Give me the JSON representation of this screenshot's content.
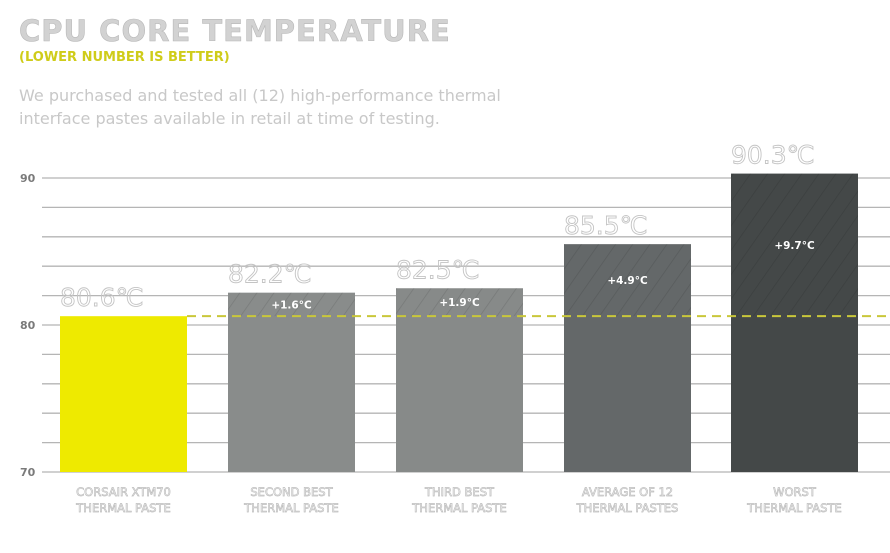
{
  "title": "CPU CORE TEMPERATURE",
  "subtitle": "(LOWER NUMBER IS BETTER)",
  "description": "We purchased and tested all (12) high-performance thermal interface pastes available in retail at time of testing.",
  "chart_data": {
    "type": "bar",
    "title": "CPU CORE TEMPERATURE",
    "categories": [
      "CORSAIR XTM70\nTHERMAL PASTE",
      "SECOND BEST\nTHERMAL PASTE",
      "THIRD BEST\nTHERMAL PASTE",
      "AVERAGE OF 12\nTHERMAL PASTES",
      "WORST\nTHERMAL PASTE"
    ],
    "values": [
      80.6,
      82.2,
      82.5,
      85.5,
      90.3
    ],
    "value_labels": [
      "80.6℃",
      "82.2℃",
      "82.5℃",
      "85.5℃",
      "90.3℃"
    ],
    "delta_labels": [
      "",
      "+1.6°C",
      "+1.9°C",
      "+4.9°C",
      "+9.7°C"
    ],
    "reference_line": 80.6,
    "ylim": [
      70,
      90
    ],
    "yticks": [
      70,
      80,
      90
    ],
    "grid_step": 2,
    "grid": true,
    "colors": [
      "#eeea00",
      "#898c8b",
      "#878a89",
      "#646869",
      "#444848"
    ],
    "reference_color": "#c9c73a"
  }
}
